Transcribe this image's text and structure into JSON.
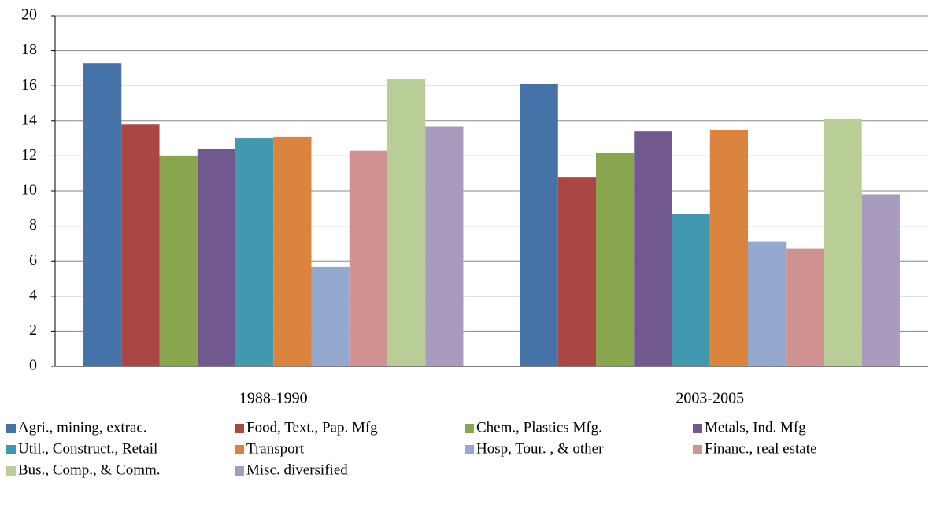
{
  "chart_data": {
    "type": "bar",
    "categories": [
      "1988-1990",
      "2003-2005"
    ],
    "series": [
      {
        "name": "Agri., mining, extrac.",
        "color": "#4572a7",
        "values": [
          17.3,
          16.1
        ]
      },
      {
        "name": "Food, Text., Pap. Mfg",
        "color": "#aa4643",
        "values": [
          13.8,
          10.8
        ]
      },
      {
        "name": "Chem., Plastics Mfg.",
        "color": "#89a54e",
        "values": [
          12.0,
          12.2
        ]
      },
      {
        "name": "Metals, Ind. Mfg",
        "color": "#71588f",
        "values": [
          12.4,
          13.4
        ]
      },
      {
        "name": "Util., Construct., Retail",
        "color": "#4198af",
        "values": [
          13.0,
          8.7
        ]
      },
      {
        "name": "Transport",
        "color": "#db843d",
        "values": [
          13.1,
          13.5
        ]
      },
      {
        "name": "Hosp, Tour. , & other",
        "color": "#93a9cf",
        "values": [
          5.7,
          7.1
        ]
      },
      {
        "name": "Financ., real estate",
        "color": "#d19392",
        "values": [
          12.3,
          6.7
        ]
      },
      {
        "name": "Bus., Comp., & Comm.",
        "color": "#b9cd96",
        "values": [
          16.4,
          14.1
        ]
      },
      {
        "name": "Misc. diversified",
        "color": "#a99bbd",
        "values": [
          13.7,
          9.8
        ]
      }
    ],
    "ylim": [
      0,
      20
    ],
    "yticks": [
      0,
      2,
      4,
      6,
      8,
      10,
      12,
      14,
      16,
      18,
      20
    ],
    "grid": true,
    "legend": "bottom"
  }
}
